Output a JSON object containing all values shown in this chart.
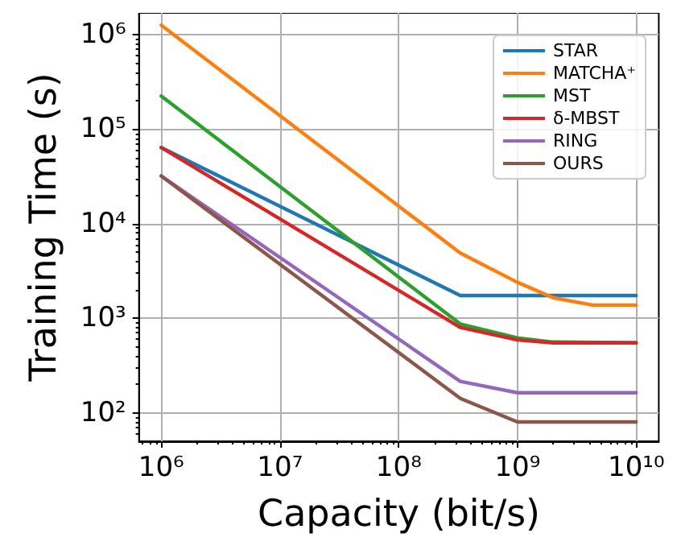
{
  "chart_data": {
    "type": "line",
    "xlabel": "Capacity (bit/s)",
    "ylabel": "Training Time (s)",
    "log": "xy",
    "grid": true,
    "legend": "top right",
    "marker": "none",
    "line_style": "solid",
    "xlim": [
      650000,
      15500000000
    ],
    "ylim": [
      50,
      1700000
    ],
    "xticks": [
      {
        "value": 1000000,
        "label": "10⁶"
      },
      {
        "value": 10000000,
        "label": "10⁷"
      },
      {
        "value": 100000000,
        "label": "10⁸"
      },
      {
        "value": 1000000000,
        "label": "10⁹"
      },
      {
        "value": 10000000000,
        "label": "10¹⁰"
      }
    ],
    "yticks": [
      {
        "value": 100,
        "label": "10²"
      },
      {
        "value": 1000,
        "label": "10³"
      },
      {
        "value": 10000,
        "label": "10⁴"
      },
      {
        "value": 100000,
        "label": "10⁵"
      },
      {
        "value": 1000000,
        "label": "10⁶"
      }
    ],
    "series": [
      {
        "name": "STAR",
        "color": "#1f77b4",
        "x": [
          1000000,
          330000000,
          10000000000
        ],
        "values": [
          64000,
          1740,
          1740
        ]
      },
      {
        "name": "MATCHA⁺",
        "color": "#ff7f0e",
        "x": [
          1000000,
          330000000,
          1000000000,
          2000000000,
          4300000000,
          10000000000
        ],
        "values": [
          1260000,
          4900,
          2400,
          1650,
          1380,
          1380
        ]
      },
      {
        "name": "MST",
        "color": "#2ca02c",
        "x": [
          1000000,
          330000000,
          1000000000,
          2000000000,
          10000000000
        ],
        "values": [
          224000,
          870,
          620,
          560,
          550
        ]
      },
      {
        "name": "δ-MBST",
        "color": "#d62728",
        "x": [
          1000000,
          330000000,
          1000000000,
          2000000000,
          10000000000
        ],
        "values": [
          64000,
          800,
          590,
          550,
          550
        ]
      },
      {
        "name": "RING",
        "color": "#9467bd",
        "x": [
          1000000,
          330000000,
          1000000000,
          10000000000
        ],
        "values": [
          32000,
          215,
          163,
          163
        ]
      },
      {
        "name": "OURS",
        "color": "#8c564b",
        "x": [
          1000000,
          330000000,
          1000000000,
          10000000000
        ],
        "values": [
          32000,
          142,
          80,
          80
        ]
      }
    ]
  }
}
